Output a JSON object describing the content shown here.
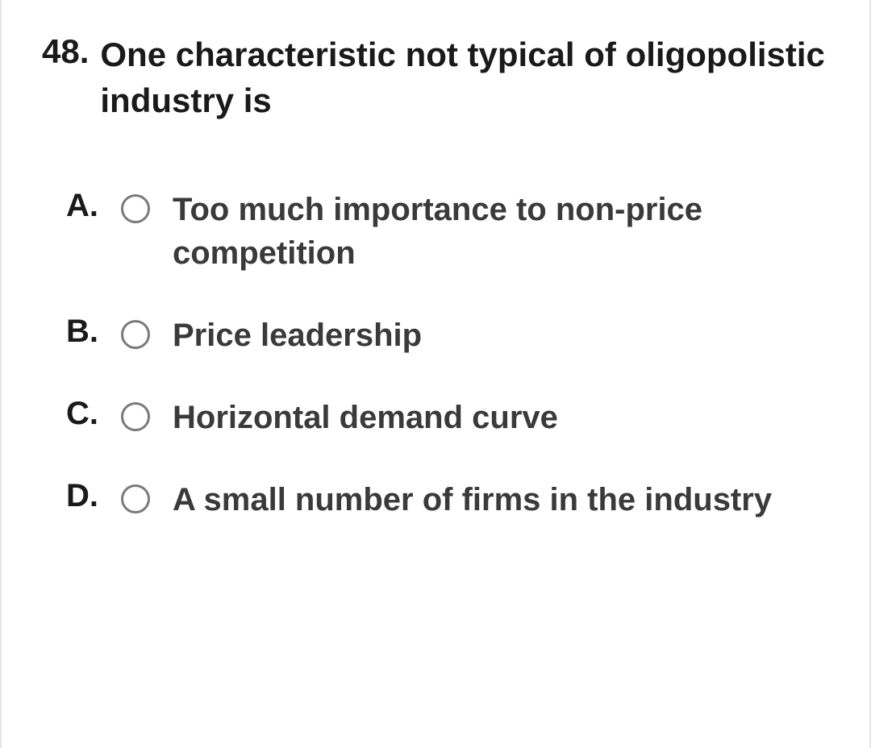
{
  "question": {
    "number": "48.",
    "text": "One characteristic not typical of oligopolistic industry is"
  },
  "options": [
    {
      "letter": "A.",
      "text": "Too much importance to non-price competition"
    },
    {
      "letter": "B.",
      "text": "Price leadership"
    },
    {
      "letter": "C.",
      "text": "Horizontal demand curve"
    },
    {
      "letter": "D.",
      "text": "A small number of firms in the industry"
    }
  ],
  "styling": {
    "background_color": "#ffffff",
    "border_color": "#e5e5e5",
    "question_font_size": 42,
    "option_font_size": 40,
    "question_color": "#1a1a1a",
    "option_text_color": "#3a3a3a",
    "radio_border_color": "#7a7a7a",
    "radio_size": 36,
    "font_weight": 700
  }
}
